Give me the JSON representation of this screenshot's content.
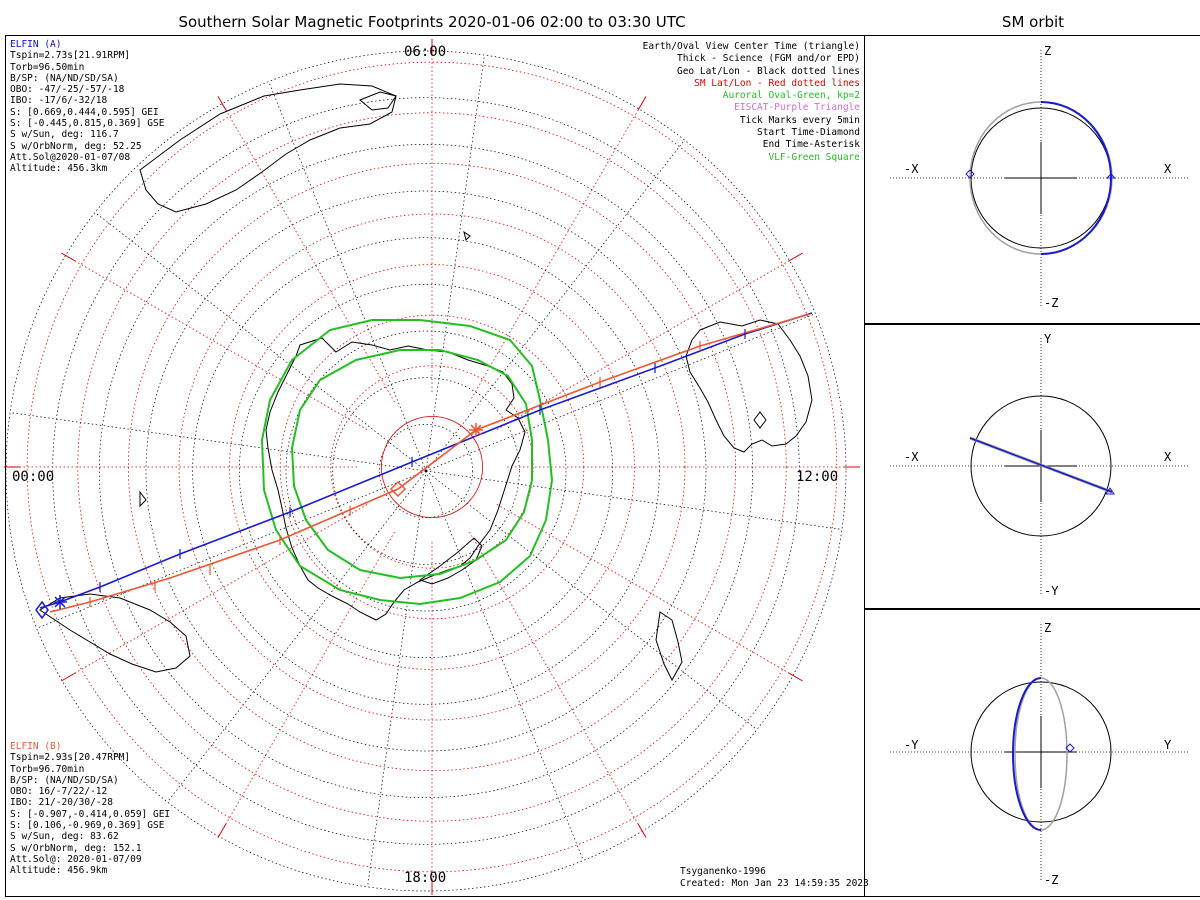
{
  "title": "Southern Solar Magnetic Footprints 2020-01-06 02:00 to 03:30 UTC",
  "orbit_title": "SM orbit",
  "elfin_a": {
    "name": "ELFIN (A)",
    "color": "#1010d0",
    "lines": [
      "Tspin=2.73s[21.91RPM]",
      "Torb=96.50min",
      "B/SP: (NA/ND/SD/SA)",
      "OBO: -47/-25/-57/-18",
      "IBO: -17/6/-32/18",
      "S: [0.669,0.444,0.595] GEI",
      "S: [-0.445,0.815,0.369] GSE",
      "S w/Sun, deg: 116.7",
      "S w/OrbNorm, deg: 52.25",
      "Att.Sol@2020-01-07/08",
      "Altitude: 456.3km"
    ]
  },
  "elfin_b": {
    "name": "ELFIN (B)",
    "color": "#e0603a",
    "lines": [
      "Tspin=2.93s[20.47RPM]",
      "Torb=96.70min",
      "B/SP: (NA/ND/SD/SA)",
      "OBO: 16/-7/22/-12",
      "IBO: 21/-20/30/-28",
      "S: [-0.907,-0.414,0.059] GEI",
      "S: [0.106,-0.969,0.369] GSE",
      "S w/Sun, deg: 83.62",
      "S w/OrbNorm, deg: 152.1",
      "Att.Sol@: 2020-01-07/09",
      "Altitude: 456.9km"
    ]
  },
  "legend": [
    {
      "text": "Earth/Oval View Center Time (triangle)",
      "color": "#000000"
    },
    {
      "text": "Thick - Science (FGM and/or EPD)",
      "color": "#000000"
    },
    {
      "text": "Geo Lat/Lon - Black dotted lines",
      "color": "#000000"
    },
    {
      "text": "SM Lat/Lon - Red dotted lines",
      "color": "#e00000"
    },
    {
      "text": "Auroral Oval-Green, kp=2",
      "color": "#22c022"
    },
    {
      "text": "EISCAT-Purple Triangle",
      "color": "#d070d0"
    },
    {
      "text": "Tick Marks every 5min",
      "color": "#000000"
    },
    {
      "text": "Start Time-Diamond",
      "color": "#000000"
    },
    {
      "text": "End Time-Asterisk",
      "color": "#000000"
    },
    {
      "text": "VLF-Green Square",
      "color": "#22c022"
    }
  ],
  "mlt_labels": {
    "top": "06:00",
    "left": "00:00",
    "right": "12:00",
    "bottom": "18:00"
  },
  "footer": {
    "model": "Tsyganenko-1996",
    "created": "Created: Mon Jan 23 14:59:35 2023"
  },
  "orbit_panels": [
    {
      "h_neg": "-X",
      "h_pos": "X",
      "v_pos": "Z",
      "v_neg": "-Z"
    },
    {
      "h_neg": "-X",
      "h_pos": "X",
      "v_pos": "Y",
      "v_neg": "-Y"
    },
    {
      "h_neg": "-Y",
      "h_pos": "Y",
      "v_pos": "Z",
      "v_neg": "-Z"
    }
  ],
  "colors": {
    "track_a": "#1a1ad0",
    "track_b": "#ee5530",
    "oval": "#22c022",
    "grid_sm": "#e00000",
    "grid_geo": "#000000",
    "orbit_gray": "#a0a0a0"
  }
}
